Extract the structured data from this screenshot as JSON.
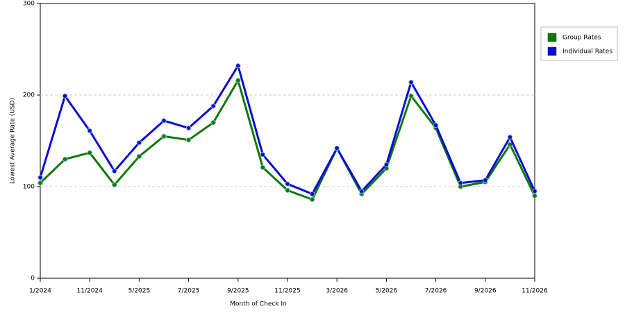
{
  "chart_data": {
    "type": "line",
    "x_label": "Month of Check In",
    "y_label": "Lowest Average Rate (USD)",
    "categories": [
      "1/2024",
      null,
      "11/2024",
      null,
      "5/2025",
      null,
      "7/2025",
      null,
      "9/2025",
      null,
      "11/2025",
      null,
      "3/2026",
      null,
      "5/2026",
      null,
      "7/2026",
      null,
      "9/2026",
      null,
      "11/2026"
    ],
    "series": [
      {
        "name": "Group Rates",
        "color": "#0a7a0a",
        "values": [
          104,
          130,
          137,
          102,
          133,
          155,
          151,
          170,
          216,
          121,
          96,
          86,
          142,
          92,
          120,
          199,
          164,
          100,
          105,
          146,
          90
        ]
      },
      {
        "name": "Individual Rates",
        "color": "#0a0ad8",
        "values": [
          110,
          199,
          161,
          117,
          148,
          172,
          164,
          188,
          232,
          135,
          103,
          92,
          142,
          95,
          124,
          214,
          167,
          104,
          107,
          154,
          95
        ]
      }
    ],
    "ylim": [
      0,
      300
    ],
    "yticks": [
      0,
      100,
      200,
      300
    ],
    "grid": true,
    "legend": "right"
  }
}
